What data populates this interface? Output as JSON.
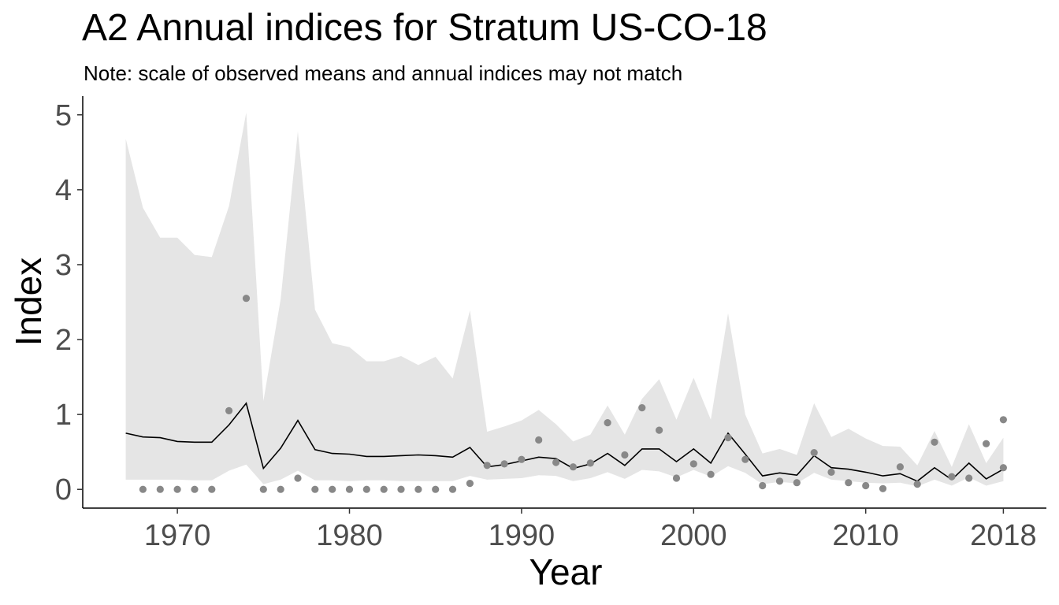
{
  "chart_data": {
    "type": "line",
    "title": "A2 Annual indices for Stratum US-CO-18",
    "subtitle": "Note: scale of observed means and annual indices may not match",
    "xlabel": "Year",
    "ylabel": "Index",
    "xlim": [
      1964.5,
      2020.5
    ],
    "ylim": [
      -0.25,
      5.25
    ],
    "xticks": [
      1970,
      1980,
      1990,
      2000,
      2010,
      2018
    ],
    "yticks": [
      0,
      1,
      2,
      3,
      4,
      5
    ],
    "grid": false,
    "legend": "none",
    "colors": {
      "index_line": "#000000",
      "ribbon": "#e5e5e5",
      "points": "#888888",
      "axis": "#000000",
      "tick_labels": "#4d4d4d"
    },
    "x": [
      1967,
      1968,
      1969,
      1970,
      1971,
      1972,
      1973,
      1974,
      1975,
      1976,
      1977,
      1978,
      1979,
      1980,
      1981,
      1982,
      1983,
      1984,
      1985,
      1986,
      1987,
      1988,
      1989,
      1990,
      1991,
      1992,
      1993,
      1994,
      1995,
      1996,
      1997,
      1998,
      1999,
      2000,
      2001,
      2002,
      2003,
      2004,
      2005,
      2006,
      2007,
      2008,
      2009,
      2010,
      2011,
      2012,
      2013,
      2014,
      2015,
      2016,
      2017,
      2018
    ],
    "series": [
      {
        "role": "annual index",
        "type": "line",
        "values": [
          0.75,
          0.7,
          0.69,
          0.64,
          0.63,
          0.63,
          0.86,
          1.15,
          0.28,
          0.55,
          0.92,
          0.53,
          0.48,
          0.47,
          0.44,
          0.44,
          0.45,
          0.46,
          0.45,
          0.43,
          0.56,
          0.3,
          0.33,
          0.38,
          0.43,
          0.41,
          0.28,
          0.34,
          0.48,
          0.32,
          0.54,
          0.54,
          0.37,
          0.54,
          0.35,
          0.75,
          0.47,
          0.18,
          0.22,
          0.19,
          0.45,
          0.29,
          0.27,
          0.23,
          0.18,
          0.21,
          0.11,
          0.29,
          0.13,
          0.35,
          0.14,
          0.27
        ]
      },
      {
        "role": "credible interval upper",
        "type": "area",
        "values": [
          4.68,
          3.76,
          3.36,
          3.36,
          3.13,
          3.1,
          3.78,
          5.03,
          1.18,
          2.54,
          4.78,
          2.4,
          1.95,
          1.9,
          1.71,
          1.71,
          1.78,
          1.66,
          1.77,
          1.48,
          2.39,
          0.77,
          0.84,
          0.92,
          1.06,
          0.87,
          0.64,
          0.73,
          1.12,
          0.73,
          1.21,
          1.47,
          0.93,
          1.49,
          0.93,
          2.35,
          1.0,
          0.48,
          0.54,
          0.46,
          1.15,
          0.7,
          0.81,
          0.68,
          0.58,
          0.57,
          0.32,
          0.78,
          0.3,
          0.87,
          0.35,
          0.69
        ]
      },
      {
        "role": "credible interval lower",
        "type": "area",
        "values": [
          0.13,
          0.13,
          0.13,
          0.13,
          0.12,
          0.12,
          0.25,
          0.33,
          0.07,
          0.13,
          0.25,
          0.12,
          0.12,
          0.11,
          0.12,
          0.12,
          0.11,
          0.11,
          0.11,
          0.11,
          0.18,
          0.13,
          0.14,
          0.15,
          0.19,
          0.18,
          0.11,
          0.15,
          0.23,
          0.14,
          0.26,
          0.24,
          0.16,
          0.26,
          0.17,
          0.31,
          0.22,
          0.07,
          0.1,
          0.08,
          0.22,
          0.13,
          0.11,
          0.09,
          0.08,
          0.09,
          0.04,
          0.13,
          0.05,
          0.16,
          0.05,
          0.11
        ]
      },
      {
        "role": "observed mean",
        "type": "scatter",
        "points": [
          [
            1968,
            0.0
          ],
          [
            1969,
            0.0
          ],
          [
            1970,
            0.0
          ],
          [
            1971,
            0.0
          ],
          [
            1972,
            0.0
          ],
          [
            1973,
            1.05
          ],
          [
            1974,
            2.55
          ],
          [
            1975,
            0.0
          ],
          [
            1976,
            0.0
          ],
          [
            1977,
            0.15
          ],
          [
            1978,
            0.0
          ],
          [
            1979,
            0.0
          ],
          [
            1980,
            0.0
          ],
          [
            1981,
            0.0
          ],
          [
            1982,
            0.0
          ],
          [
            1983,
            0.0
          ],
          [
            1984,
            0.0
          ],
          [
            1985,
            0.0
          ],
          [
            1986,
            0.0
          ],
          [
            1987,
            0.08
          ],
          [
            1988,
            0.32
          ],
          [
            1989,
            0.34
          ],
          [
            1990,
            0.4
          ],
          [
            1991,
            0.66
          ],
          [
            1992,
            0.36
          ],
          [
            1993,
            0.3
          ],
          [
            1994,
            0.35
          ],
          [
            1995,
            0.89
          ],
          [
            1996,
            0.46
          ],
          [
            1997,
            1.09
          ],
          [
            1998,
            0.79
          ],
          [
            1999,
            0.15
          ],
          [
            2000,
            0.34
          ],
          [
            2001,
            0.2
          ],
          [
            2002,
            0.69
          ],
          [
            2003,
            0.4
          ],
          [
            2004,
            0.05
          ],
          [
            2005,
            0.11
          ],
          [
            2006,
            0.09
          ],
          [
            2007,
            0.49
          ],
          [
            2008,
            0.23
          ],
          [
            2009,
            0.09
          ],
          [
            2010,
            0.05
          ],
          [
            2011,
            0.01
          ],
          [
            2012,
            0.3
          ],
          [
            2013,
            0.07
          ],
          [
            2014,
            0.63
          ],
          [
            2015,
            0.17
          ],
          [
            2016,
            0.15
          ],
          [
            2017,
            0.61
          ],
          [
            2018,
            0.29
          ],
          [
            2018,
            0.93
          ]
        ]
      }
    ]
  }
}
